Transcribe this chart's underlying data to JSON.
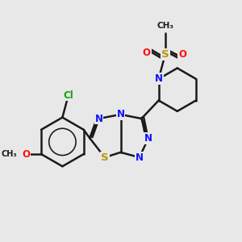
{
  "bg_color": "#e8e8e8",
  "bond_color": "#1a1a1a",
  "bond_width": 1.8,
  "N_color": "#1010ff",
  "S_color": "#b8960a",
  "O_color": "#ff1010",
  "Cl_color": "#10a010",
  "C_color": "#1a1a1a",
  "font_size": 8.5,
  "fig_size": [
    3.0,
    3.0
  ],
  "dpi": 100,
  "xlim": [
    0.5,
    8.5
  ],
  "ylim": [
    0.5,
    8.5
  ]
}
